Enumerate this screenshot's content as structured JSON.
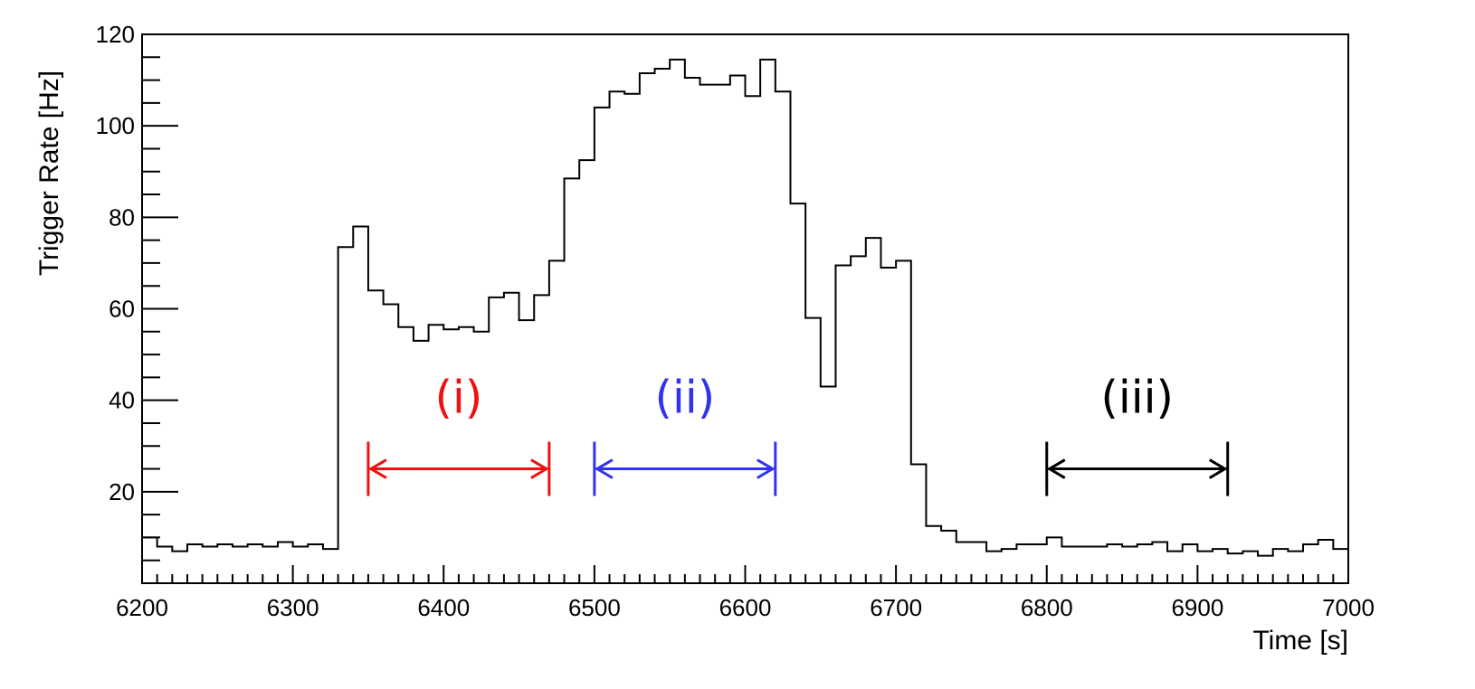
{
  "chart_data": {
    "type": "line",
    "style": "step-histogram",
    "xlabel": "Time [s]",
    "ylabel": "Trigger Rate [Hz]",
    "xlim": [
      6200,
      7000
    ],
    "ylim": [
      0,
      120
    ],
    "xticks": [
      6200,
      6300,
      6400,
      6500,
      6600,
      6700,
      6800,
      6900,
      7000
    ],
    "yticks": [
      20,
      40,
      60,
      80,
      100,
      120
    ],
    "grid": false,
    "bin_width": 10,
    "series": [
      {
        "x": [
          6200,
          6210,
          6220,
          6230,
          6240,
          6250,
          6260,
          6270,
          6280,
          6290,
          6300,
          6310,
          6320,
          6330,
          6340,
          6350,
          6360,
          6370,
          6380,
          6390,
          6400,
          6410,
          6420,
          6430,
          6440,
          6450,
          6460,
          6470,
          6480,
          6490,
          6500,
          6510,
          6520,
          6530,
          6540,
          6550,
          6560,
          6570,
          6580,
          6590,
          6600,
          6610,
          6620,
          6630,
          6640,
          6650,
          6660,
          6670,
          6680,
          6690,
          6700,
          6710,
          6720,
          6730,
          6740,
          6750,
          6760,
          6770,
          6780,
          6790,
          6800,
          6810,
          6820,
          6830,
          6840,
          6850,
          6860,
          6870,
          6880,
          6890,
          6900,
          6910,
          6920,
          6930,
          6940,
          6950,
          6960,
          6970,
          6980,
          6990
        ],
        "values": [
          10,
          8,
          7,
          8.5,
          8,
          8.5,
          8,
          8.5,
          8,
          9,
          8,
          8.5,
          7.5,
          73.5,
          78,
          64,
          61,
          56,
          53,
          56.5,
          55.5,
          56,
          55,
          62.5,
          63.5,
          57.5,
          63,
          70.5,
          88.5,
          92.5,
          104,
          107.5,
          107,
          111.5,
          112.5,
          114.5,
          110.5,
          109,
          109,
          111,
          106.5,
          114.5,
          107.5,
          83,
          58,
          43,
          69.5,
          71.5,
          75.5,
          69,
          70.5,
          26,
          12.5,
          11.5,
          9,
          9,
          7,
          7.5,
          8.5,
          8.5,
          10,
          8,
          8,
          8,
          8.5,
          8,
          8.5,
          9,
          7,
          8.5,
          7,
          7.5,
          6.5,
          7,
          6,
          7.5,
          7,
          8.5,
          9.5,
          7.5
        ]
      }
    ],
    "annotations": [
      {
        "label": "(i)",
        "from": 6350,
        "to": 6470,
        "y": 25,
        "label_y": 40,
        "color": "#ee1111"
      },
      {
        "label": "(ii)",
        "from": 6500,
        "to": 6620,
        "y": 25,
        "label_y": 40,
        "color": "#3333ee"
      },
      {
        "label": "(iii)",
        "from": 6800,
        "to": 6920,
        "y": 25,
        "label_y": 40,
        "color": "#000000"
      }
    ]
  }
}
